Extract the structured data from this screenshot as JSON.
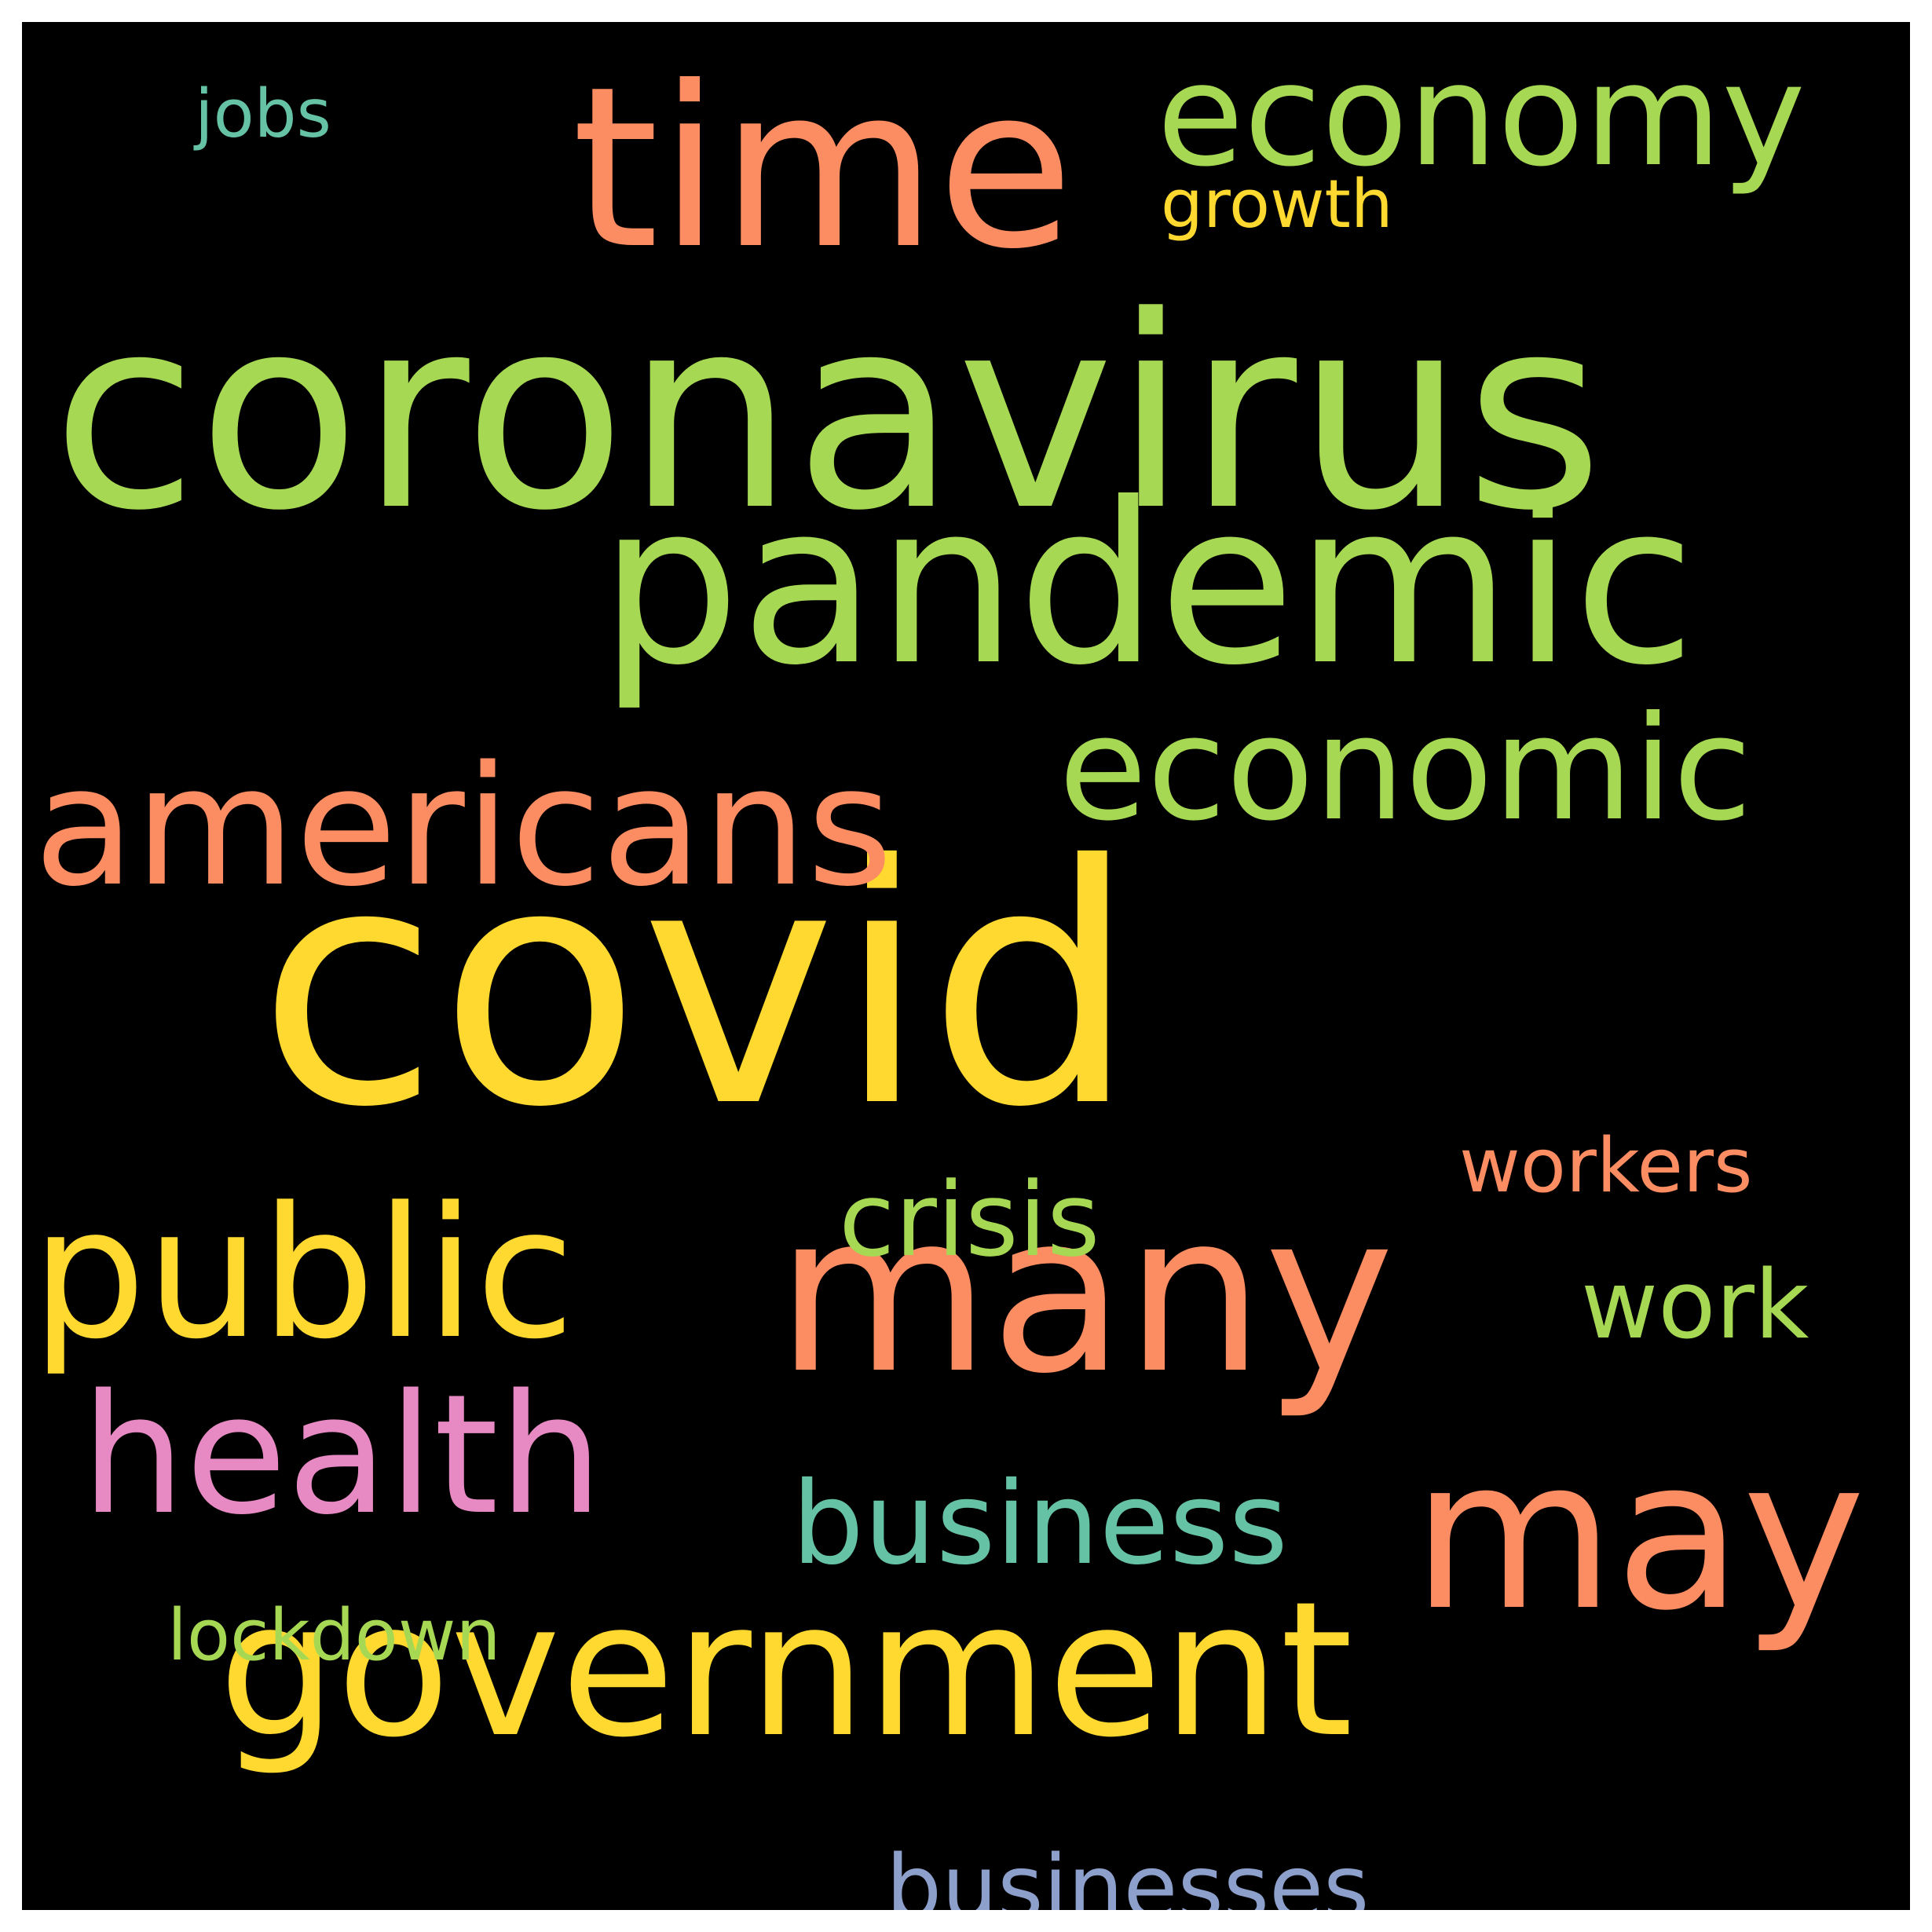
{
  "words": [
    {
      "key": "coronavirus",
      "text": "coronavirus",
      "color": "#a6d854"
    },
    {
      "key": "covid",
      "text": "covid",
      "color": "#ffd92f"
    },
    {
      "key": "pandemic",
      "text": "pandemic",
      "color": "#a6d854"
    },
    {
      "key": "time",
      "text": "time",
      "color": "#fc8d62"
    },
    {
      "key": "government",
      "text": "government",
      "color": "#ffd92f"
    },
    {
      "key": "many",
      "text": "many",
      "color": "#fc8d62"
    },
    {
      "key": "public",
      "text": "public",
      "color": "#ffd92f"
    },
    {
      "key": "may",
      "text": "may",
      "color": "#fc8d62"
    },
    {
      "key": "americans",
      "text": "americans",
      "color": "#fc8d62"
    },
    {
      "key": "economic",
      "text": "economic",
      "color": "#a6d854"
    },
    {
      "key": "health",
      "text": "health",
      "color": "#e78ac3"
    },
    {
      "key": "economy",
      "text": "economy",
      "color": "#a6d854"
    },
    {
      "key": "business",
      "text": "business",
      "color": "#66c2a5"
    },
    {
      "key": "crisis",
      "text": "crisis",
      "color": "#a6d854"
    },
    {
      "key": "work",
      "text": "work",
      "color": "#a6d854"
    },
    {
      "key": "workers",
      "text": "workers",
      "color": "#fc8d62"
    },
    {
      "key": "businesses",
      "text": "businesses",
      "color": "#8da0cb"
    },
    {
      "key": "lockdown",
      "text": "lockdown",
      "color": "#a6d854"
    },
    {
      "key": "growth",
      "text": "growth",
      "color": "#ffd92f"
    },
    {
      "key": "jobs",
      "text": "jobs",
      "color": "#66c2a5"
    }
  ]
}
